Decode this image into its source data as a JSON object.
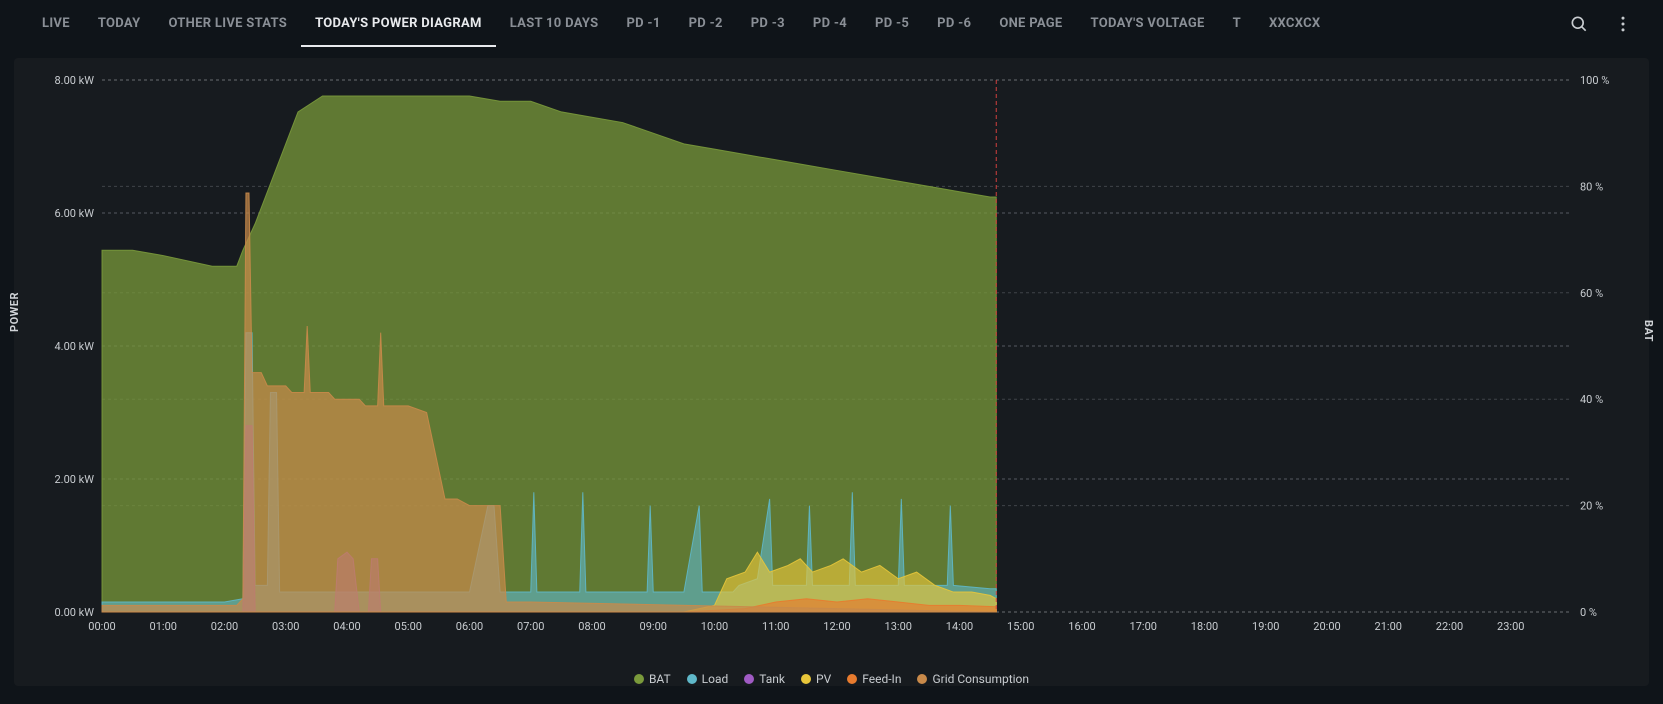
{
  "tabs": [
    {
      "label": "LIVE",
      "active": false
    },
    {
      "label": "TODAY",
      "active": false
    },
    {
      "label": "OTHER LIVE STATS",
      "active": false
    },
    {
      "label": "TODAY'S POWER DIAGRAM",
      "active": true
    },
    {
      "label": "LAST 10 DAYS",
      "active": false
    },
    {
      "label": "PD -1",
      "active": false
    },
    {
      "label": "PD -2",
      "active": false
    },
    {
      "label": "PD -3",
      "active": false
    },
    {
      "label": "PD -4",
      "active": false
    },
    {
      "label": "PD -5",
      "active": false
    },
    {
      "label": "PD -6",
      "active": false
    },
    {
      "label": "ONE PAGE",
      "active": false
    },
    {
      "label": "TODAY'S VOLTAGE",
      "active": false
    },
    {
      "label": "T",
      "active": false
    },
    {
      "label": "XXCXCX",
      "active": false
    }
  ],
  "chart": {
    "type": "area-dual-axis",
    "background_color": "#171b1f",
    "plot_background": "#171b1f",
    "grid_color": "#8a8f96",
    "grid_dash": "3 3",
    "cursor_line_color": "#d13f3f",
    "cursor_x_hour": 14.6,
    "x_axis": {
      "min_hour": 0,
      "max_hour": 24,
      "tick_step_hour": 1,
      "tick_labels": [
        "00:00",
        "01:00",
        "02:00",
        "03:00",
        "04:00",
        "05:00",
        "06:00",
        "07:00",
        "08:00",
        "09:00",
        "10:00",
        "11:00",
        "12:00",
        "13:00",
        "14:00",
        "15:00",
        "16:00",
        "17:00",
        "18:00",
        "19:00",
        "20:00",
        "21:00",
        "22:00",
        "23:00"
      ],
      "label_fontsize": 11
    },
    "y_left": {
      "label": "POWER",
      "min": 0,
      "max": 8,
      "tick_step": 2,
      "tick_labels": [
        "0.00 kW",
        "2.00 kW",
        "4.00 kW",
        "6.00 kW",
        "8.00 kW"
      ],
      "label_fontsize": 11
    },
    "y_right": {
      "label": "BAT",
      "min": 0,
      "max": 100,
      "tick_step": 20,
      "tick_labels": [
        "0 %",
        "20 %",
        "40 %",
        "60 %",
        "80 %",
        "100 %"
      ],
      "label_fontsize": 11
    },
    "series": [
      {
        "name": "BAT",
        "color": "#7a9a3b",
        "fill_opacity": 0.75,
        "axis": "right",
        "data": [
          [
            0,
            68
          ],
          [
            0.5,
            68
          ],
          [
            1,
            67
          ],
          [
            1.8,
            65
          ],
          [
            2.2,
            65
          ],
          [
            2.3,
            68
          ],
          [
            2.5,
            73
          ],
          [
            2.8,
            82
          ],
          [
            3.2,
            94
          ],
          [
            3.6,
            97
          ],
          [
            4,
            97
          ],
          [
            5,
            97
          ],
          [
            6,
            97
          ],
          [
            6.5,
            96
          ],
          [
            7,
            96
          ],
          [
            7.5,
            94
          ],
          [
            8,
            93
          ],
          [
            8.5,
            92
          ],
          [
            9,
            90
          ],
          [
            9.5,
            88
          ],
          [
            10,
            87
          ],
          [
            10.5,
            86
          ],
          [
            11,
            85
          ],
          [
            11.5,
            84
          ],
          [
            12,
            83
          ],
          [
            12.5,
            82
          ],
          [
            13,
            81
          ],
          [
            13.5,
            80
          ],
          [
            14,
            79
          ],
          [
            14.5,
            78
          ],
          [
            14.6,
            78
          ]
        ]
      },
      {
        "name": "Load",
        "color": "#5fb8c9",
        "fill_opacity": 0.6,
        "axis": "left",
        "data": [
          [
            0,
            0.15
          ],
          [
            1,
            0.15
          ],
          [
            2,
            0.15
          ],
          [
            2.3,
            0.2
          ],
          [
            2.35,
            4.2
          ],
          [
            2.45,
            4.2
          ],
          [
            2.5,
            0.4
          ],
          [
            2.7,
            0.4
          ],
          [
            2.75,
            3.3
          ],
          [
            2.85,
            3.3
          ],
          [
            2.9,
            0.3
          ],
          [
            3.5,
            0.3
          ],
          [
            4,
            0.3
          ],
          [
            5,
            0.3
          ],
          [
            6,
            0.3
          ],
          [
            6.3,
            1.6
          ],
          [
            6.4,
            1.6
          ],
          [
            6.5,
            0.3
          ],
          [
            7.0,
            0.3
          ],
          [
            7.05,
            1.8
          ],
          [
            7.1,
            0.3
          ],
          [
            7.8,
            0.3
          ],
          [
            7.85,
            1.8
          ],
          [
            7.9,
            0.3
          ],
          [
            8.5,
            0.3
          ],
          [
            8.9,
            0.3
          ],
          [
            8.95,
            1.6
          ],
          [
            9.0,
            0.3
          ],
          [
            9.5,
            0.3
          ],
          [
            9.75,
            1.6
          ],
          [
            9.8,
            0.3
          ],
          [
            10.3,
            0.3
          ],
          [
            10.4,
            0.4
          ],
          [
            10.7,
            0.5
          ],
          [
            10.9,
            1.7
          ],
          [
            10.95,
            0.4
          ],
          [
            11.5,
            0.4
          ],
          [
            11.55,
            1.6
          ],
          [
            11.6,
            0.4
          ],
          [
            12.2,
            0.4
          ],
          [
            12.25,
            1.8
          ],
          [
            12.3,
            0.4
          ],
          [
            13.0,
            0.4
          ],
          [
            13.05,
            1.7
          ],
          [
            13.1,
            0.4
          ],
          [
            13.8,
            0.4
          ],
          [
            13.85,
            1.6
          ],
          [
            13.9,
            0.4
          ],
          [
            14.5,
            0.35
          ],
          [
            14.6,
            0.35
          ]
        ]
      },
      {
        "name": "Tank",
        "color": "#a05bc4",
        "fill_opacity": 0.6,
        "axis": "left",
        "data": [
          [
            0,
            0
          ],
          [
            2.3,
            0
          ],
          [
            2.35,
            2.8
          ],
          [
            2.45,
            2.8
          ],
          [
            2.5,
            0
          ],
          [
            3.8,
            0
          ],
          [
            3.85,
            0.8
          ],
          [
            4.0,
            0.9
          ],
          [
            4.1,
            0.8
          ],
          [
            4.2,
            0
          ],
          [
            4.35,
            0
          ],
          [
            4.4,
            0.8
          ],
          [
            4.5,
            0.8
          ],
          [
            4.55,
            0
          ],
          [
            14.6,
            0
          ]
        ]
      },
      {
        "name": "PV",
        "color": "#e8c63a",
        "fill_opacity": 0.65,
        "axis": "left",
        "data": [
          [
            0,
            0
          ],
          [
            9.5,
            0
          ],
          [
            10,
            0.1
          ],
          [
            10.2,
            0.5
          ],
          [
            10.5,
            0.6
          ],
          [
            10.7,
            0.9
          ],
          [
            10.9,
            0.6
          ],
          [
            11.2,
            0.7
          ],
          [
            11.4,
            0.8
          ],
          [
            11.6,
            0.6
          ],
          [
            11.9,
            0.7
          ],
          [
            12.1,
            0.8
          ],
          [
            12.4,
            0.6
          ],
          [
            12.7,
            0.7
          ],
          [
            13.0,
            0.5
          ],
          [
            13.3,
            0.6
          ],
          [
            13.6,
            0.4
          ],
          [
            13.9,
            0.3
          ],
          [
            14.2,
            0.3
          ],
          [
            14.5,
            0.25
          ],
          [
            14.6,
            0.2
          ]
        ]
      },
      {
        "name": "Feed-In",
        "color": "#e87b2e",
        "fill_opacity": 0.65,
        "axis": "left",
        "data": [
          [
            0,
            0
          ],
          [
            9.5,
            0
          ],
          [
            10.5,
            0.05
          ],
          [
            11,
            0.15
          ],
          [
            11.5,
            0.2
          ],
          [
            12,
            0.15
          ],
          [
            12.5,
            0.2
          ],
          [
            13,
            0.15
          ],
          [
            13.5,
            0.1
          ],
          [
            14,
            0.1
          ],
          [
            14.6,
            0.08
          ]
        ]
      },
      {
        "name": "Grid Consumption",
        "color": "#c98a4a",
        "fill_opacity": 0.7,
        "axis": "left",
        "data": [
          [
            0,
            0.1
          ],
          [
            2,
            0.1
          ],
          [
            2.2,
            0.1
          ],
          [
            2.3,
            0.2
          ],
          [
            2.35,
            6.3
          ],
          [
            2.4,
            6.3
          ],
          [
            2.45,
            3.6
          ],
          [
            2.6,
            3.6
          ],
          [
            2.7,
            3.4
          ],
          [
            3.0,
            3.4
          ],
          [
            3.1,
            3.3
          ],
          [
            3.3,
            3.3
          ],
          [
            3.35,
            4.3
          ],
          [
            3.4,
            3.3
          ],
          [
            3.7,
            3.3
          ],
          [
            3.8,
            3.2
          ],
          [
            4.2,
            3.2
          ],
          [
            4.3,
            3.1
          ],
          [
            4.5,
            3.1
          ],
          [
            4.55,
            4.2
          ],
          [
            4.6,
            3.1
          ],
          [
            5.0,
            3.1
          ],
          [
            5.3,
            3.0
          ],
          [
            5.6,
            1.7
          ],
          [
            5.8,
            1.7
          ],
          [
            6.0,
            1.6
          ],
          [
            6.3,
            1.6
          ],
          [
            6.5,
            1.6
          ],
          [
            6.6,
            0.15
          ],
          [
            7,
            0.15
          ],
          [
            14.6,
            0
          ]
        ]
      }
    ],
    "legend": [
      {
        "label": "BAT",
        "color": "#7a9a3b"
      },
      {
        "label": "Load",
        "color": "#5fb8c9"
      },
      {
        "label": "Tank",
        "color": "#a05bc4"
      },
      {
        "label": "PV",
        "color": "#e8c63a"
      },
      {
        "label": "Feed-In",
        "color": "#e87b2e"
      },
      {
        "label": "Grid Consumption",
        "color": "#c98a4a"
      }
    ]
  }
}
